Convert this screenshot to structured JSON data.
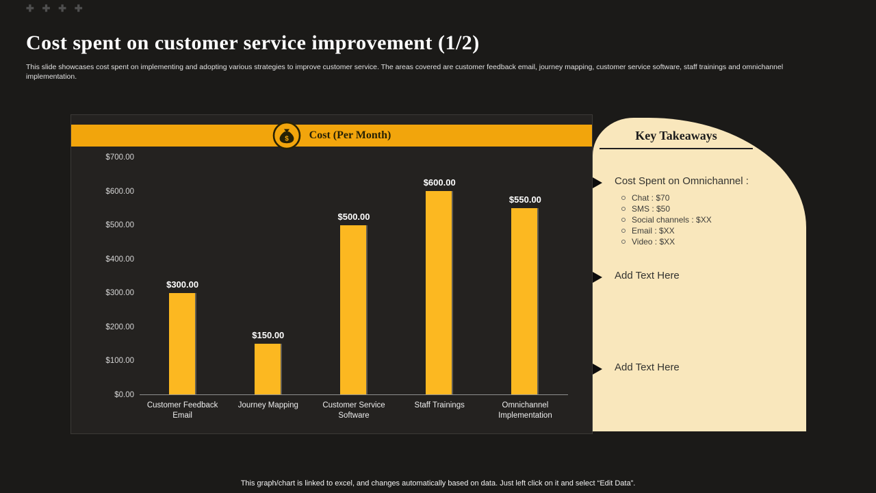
{
  "slide": {
    "decoration": "✚ ✚ ✚ ✚",
    "title": "Cost spent on customer service improvement (1/2)",
    "subtitle": "This slide showcases cost spent on implementing  and adopting various strategies to improve customer service. The areas covered are customer feedback email, journey mapping,  customer service software, staff trainings and omnichannel implementation.",
    "footer": "This graph/chart is linked to excel, and changes automatically based on data. Just left click on it and select “Edit Data”."
  },
  "chart": {
    "header_label": "Cost (Per Month)",
    "header_icon": "money-bag-icon"
  },
  "chart_data": {
    "type": "bar",
    "title": "Cost (Per Month)",
    "categories": [
      "Customer Feedback Email",
      "Journey Mapping",
      "Customer Service Software",
      "Staff Trainings",
      "Omnichannel Implementation"
    ],
    "values": [
      300,
      150,
      500,
      600,
      550
    ],
    "data_labels": [
      "$300.00",
      "$150.00",
      "$500.00",
      "$600.00",
      "$550.00"
    ],
    "xlabel": "",
    "ylabel": "",
    "ylim": [
      0,
      700
    ],
    "ytick_interval": 100,
    "ytick_labels": [
      "$0.00",
      "$100.00",
      "$200.00",
      "$300.00",
      "$400.00",
      "$500.00",
      "$600.00",
      "$700.00"
    ],
    "grid": false,
    "legend": "none",
    "bar_color": "#fcb821"
  },
  "takeaways": {
    "title": "Key Takeaways",
    "items": [
      {
        "label": "Cost Spent on Omnichannel  :",
        "subitems": [
          "Chat : $70",
          "SMS : $50",
          "Social channels : $XX",
          "Email : $XX",
          "Video : $XX"
        ]
      },
      {
        "label": "Add Text Here",
        "subitems": []
      },
      {
        "label": "Add Text Here",
        "subitems": []
      }
    ]
  },
  "colors": {
    "background": "#1b1a18",
    "panel": "#242220",
    "accent": "#f2a50c",
    "bar": "#fcb821",
    "cream": "#f9e7bc"
  }
}
